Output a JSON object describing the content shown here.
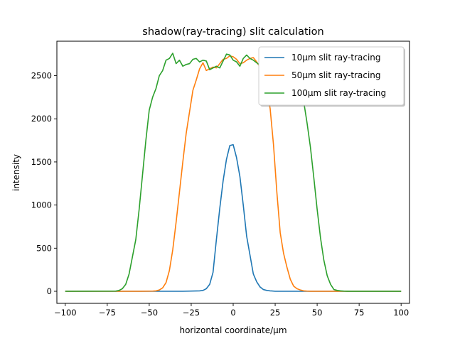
{
  "chart_data": {
    "type": "line",
    "title": "shadow(ray-tracing) slit calculation",
    "xlabel": "horizontal coordinate/μm",
    "ylabel": "intensity",
    "xlim": [
      -105,
      105
    ],
    "ylim": [
      -140,
      2900
    ],
    "xticks": [
      -100,
      -75,
      -50,
      -25,
      0,
      25,
      50,
      75,
      100
    ],
    "xtick_labels": [
      "−100",
      "−75",
      "−50",
      "−25",
      "0",
      "25",
      "50",
      "75",
      "100"
    ],
    "yticks": [
      0,
      500,
      1000,
      1500,
      2000,
      2500
    ],
    "ytick_labels": [
      "0",
      "500",
      "1000",
      "1500",
      "2000",
      "2500"
    ],
    "legend_position": "top-right",
    "series": [
      {
        "name": "10μm slit ray-tracing",
        "color": "#1f77b4",
        "x": [
          -100,
          -50,
          -30,
          -20,
          -18,
          -16,
          -14,
          -12,
          -10,
          -8,
          -6,
          -4,
          -2,
          0,
          2,
          4,
          6,
          8,
          10,
          12,
          14,
          16,
          18,
          20,
          22,
          25,
          50,
          100
        ],
        "y": [
          0,
          0,
          0,
          5,
          10,
          30,
          80,
          220,
          600,
          960,
          1280,
          1530,
          1690,
          1700,
          1550,
          1330,
          1000,
          640,
          420,
          200,
          110,
          50,
          20,
          10,
          5,
          0,
          0,
          0
        ]
      },
      {
        "name": "50μm slit ray-tracing",
        "color": "#ff7f0e",
        "x": [
          -100,
          -55,
          -48,
          -46,
          -44,
          -42,
          -40,
          -38,
          -36,
          -34,
          -32,
          -30,
          -28,
          -26,
          -24,
          -22,
          -20,
          -18,
          -16,
          -14,
          -12,
          -10,
          -8,
          -6,
          -4,
          -2,
          0,
          2,
          4,
          6,
          8,
          10,
          12,
          14,
          16,
          18,
          20,
          22,
          24,
          26,
          28,
          30,
          32,
          34,
          36,
          38,
          40,
          42,
          44,
          46,
          50,
          100
        ],
        "y": [
          0,
          0,
          2,
          5,
          15,
          40,
          100,
          240,
          480,
          800,
          1150,
          1500,
          1830,
          2080,
          2330,
          2450,
          2580,
          2650,
          2560,
          2580,
          2600,
          2590,
          2640,
          2690,
          2700,
          2730,
          2720,
          2690,
          2640,
          2650,
          2680,
          2700,
          2710,
          2660,
          2600,
          2510,
          2350,
          2120,
          1700,
          1150,
          680,
          440,
          280,
          140,
          60,
          30,
          15,
          5,
          2,
          0,
          0,
          0
        ]
      },
      {
        "name": "100μm slit ray-tracing",
        "color": "#2ca02c",
        "x": [
          -100,
          -70,
          -68,
          -66,
          -64,
          -62,
          -60,
          -58,
          -56,
          -54,
          -52,
          -50,
          -48,
          -46,
          -44,
          -42,
          -40,
          -38,
          -36,
          -34,
          -32,
          -30,
          -28,
          -26,
          -24,
          -22,
          -20,
          -18,
          -16,
          -14,
          -12,
          -10,
          -8,
          -6,
          -4,
          -2,
          0,
          2,
          4,
          6,
          8,
          10,
          12,
          14,
          16,
          18,
          20,
          22,
          24,
          26,
          28,
          30,
          32,
          34,
          36,
          38,
          40,
          42,
          44,
          46,
          48,
          50,
          52,
          54,
          56,
          58,
          60,
          62,
          64,
          66,
          68,
          70,
          100
        ],
        "y": [
          0,
          2,
          10,
          30,
          80,
          200,
          400,
          600,
          950,
          1350,
          1750,
          2100,
          2250,
          2350,
          2500,
          2560,
          2680,
          2700,
          2760,
          2640,
          2680,
          2610,
          2630,
          2640,
          2690,
          2700,
          2660,
          2680,
          2670,
          2570,
          2590,
          2610,
          2590,
          2670,
          2750,
          2740,
          2680,
          2660,
          2610,
          2700,
          2740,
          2700,
          2680,
          2650,
          2620,
          2600,
          2620,
          2610,
          2580,
          2560,
          2550,
          2560,
          2530,
          2520,
          2480,
          2420,
          2320,
          2200,
          1950,
          1670,
          1320,
          950,
          620,
          360,
          180,
          80,
          20,
          10,
          5,
          2,
          1,
          0,
          0
        ]
      }
    ]
  }
}
